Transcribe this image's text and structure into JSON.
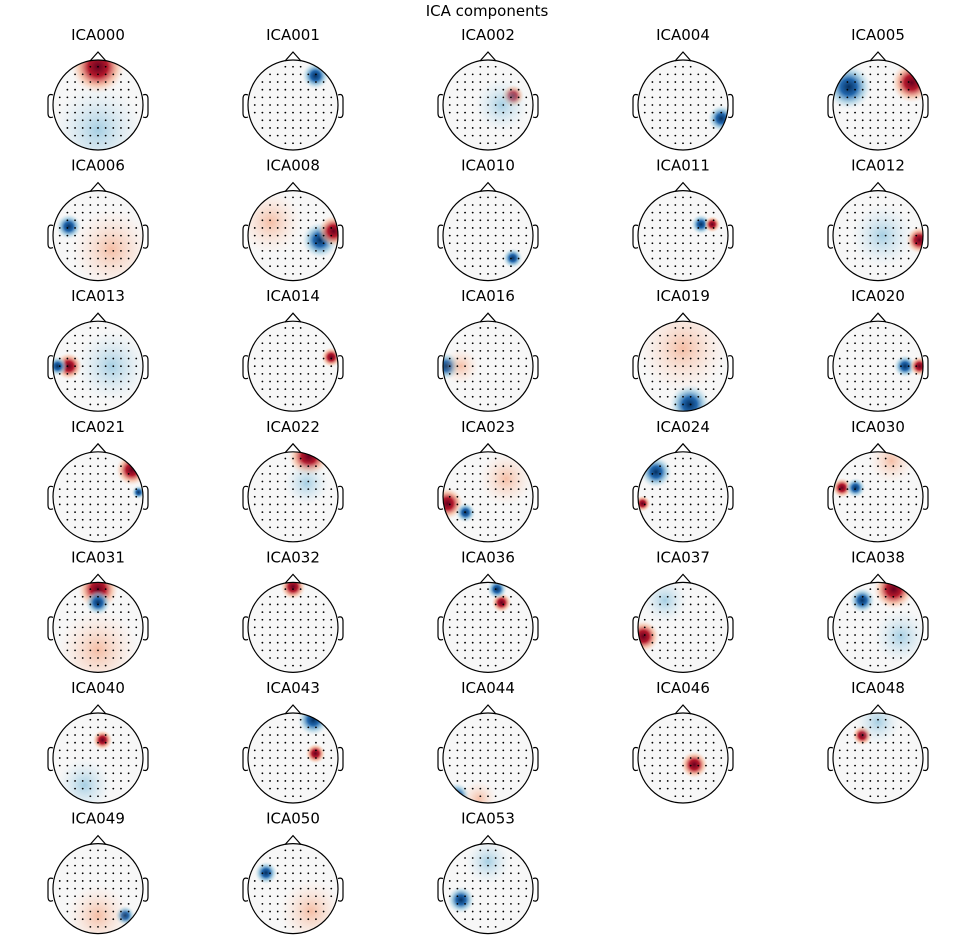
{
  "title": "ICA components",
  "components": [
    "ICA000",
    "ICA001",
    "ICA002",
    "ICA004",
    "ICA005",
    "ICA006",
    "ICA008",
    "ICA010",
    "ICA011",
    "ICA012",
    "ICA013",
    "ICA014",
    "ICA016",
    "ICA019",
    "ICA020",
    "ICA021",
    "ICA022",
    "ICA023",
    "ICA024",
    "ICA030",
    "ICA031",
    "ICA032",
    "ICA036",
    "ICA037",
    "ICA038",
    "ICA040",
    "ICA043",
    "ICA044",
    "ICA046",
    "ICA048",
    "ICA049",
    "ICA050",
    "ICA053"
  ]
}
